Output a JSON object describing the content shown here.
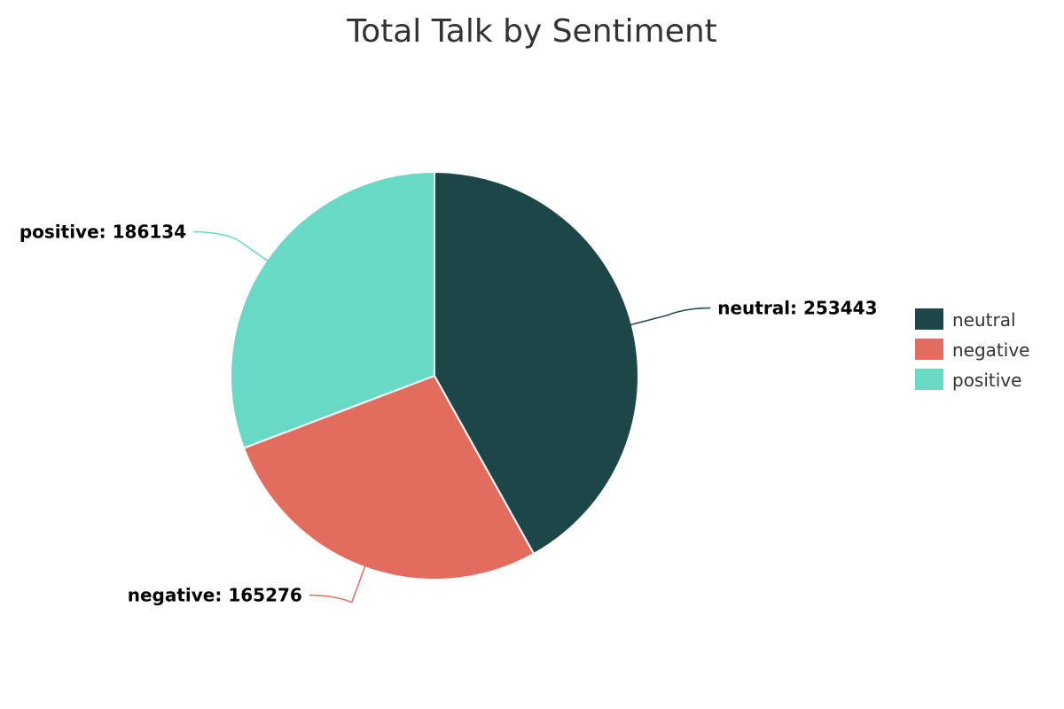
{
  "chart_data": {
    "type": "pie",
    "title": "Total Talk by Sentiment",
    "categories": [
      "neutral",
      "negative",
      "positive"
    ],
    "values": [
      253443,
      165276,
      186134
    ],
    "colors": [
      "#1d4648",
      "#e26d5e",
      "#68d9c4"
    ],
    "legend_position": "right"
  }
}
